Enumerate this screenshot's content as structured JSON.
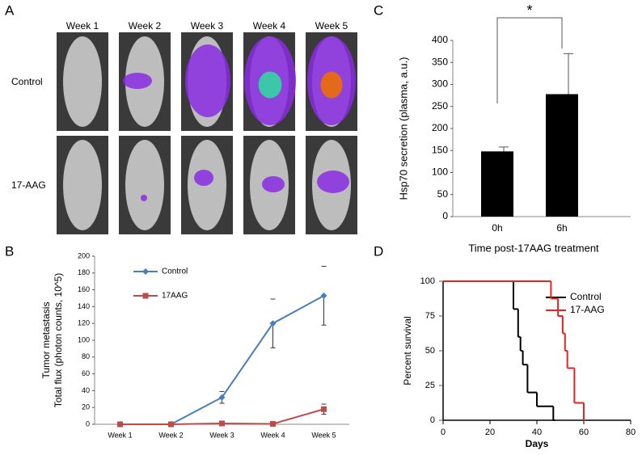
{
  "panel_labels": [
    "A",
    "B",
    "C",
    "D"
  ],
  "imaging": {
    "columns": [
      "Week 1",
      "Week 2",
      "Week 3",
      "Week 4",
      "Week 5"
    ],
    "rows": [
      "Control",
      "17-AAG"
    ]
  },
  "chart_data": [
    {
      "type": "line",
      "ylabel": [
        "Tumor metastasis",
        "Total flux (photon counts, 10^5)"
      ],
      "categories": [
        "Week 1",
        "Week 2",
        "Week 3",
        "Week 4",
        "Week 5"
      ],
      "series": [
        {
          "name": "Control",
          "color": "#4a7ebb",
          "marker": "diamond",
          "values": [
            0,
            0,
            32,
            120,
            153
          ],
          "errors": [
            null,
            null,
            7,
            29,
            35
          ]
        },
        {
          "name": "17AAG",
          "color": "#be4b48",
          "marker": "square",
          "values": [
            0,
            0,
            1,
            0.5,
            18
          ],
          "errors": [
            null,
            null,
            null,
            null,
            6
          ]
        }
      ],
      "ylim": [
        0,
        200
      ],
      "yticks": [
        0,
        20,
        40,
        60,
        80,
        100,
        120,
        140,
        160,
        180,
        200
      ],
      "legend": "top-center"
    },
    {
      "type": "bar",
      "ylabel": "Hsp70 secretion (plasma, a.u.)",
      "xlabel": "Time post-17AAG treatment",
      "categories": [
        "0h",
        "6h"
      ],
      "values": [
        148,
        278
      ],
      "errors": [
        10,
        92
      ],
      "color": "#000000",
      "ylim": [
        0,
        400
      ],
      "yticks": [
        0,
        50,
        100,
        150,
        200,
        250,
        300,
        350,
        400
      ],
      "annotation": "*"
    },
    {
      "type": "step",
      "ylabel": "Percent survival",
      "xlabel": "Days",
      "series": [
        {
          "name": "Control",
          "color": "#000000",
          "x": [
            0,
            30,
            32,
            33,
            34,
            36,
            40,
            47
          ],
          "values": [
            100,
            80,
            60,
            50,
            40,
            20,
            10,
            0
          ]
        },
        {
          "name": "17-AAG",
          "color": "#e8231f",
          "x": [
            0,
            46,
            49,
            51,
            52,
            53,
            56,
            60
          ],
          "values": [
            100,
            87.5,
            75,
            62.5,
            50,
            37.5,
            12.5,
            0
          ]
        }
      ],
      "xlim": [
        0,
        80
      ],
      "xticks": [
        0,
        20,
        40,
        60,
        80
      ],
      "ylim": [
        0,
        100
      ],
      "yticks": [
        0,
        25,
        50,
        75,
        100
      ],
      "legend": "top-right"
    }
  ]
}
